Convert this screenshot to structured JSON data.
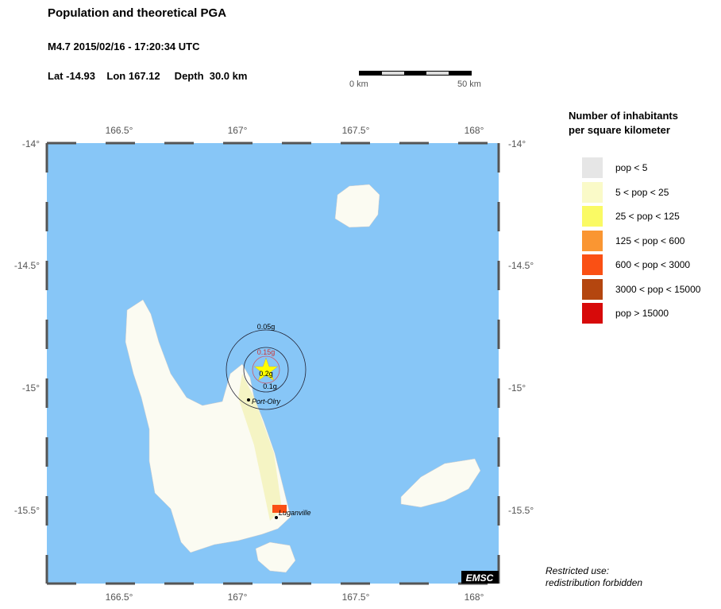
{
  "header": {
    "title": "Population and theoretical PGA",
    "event": "M4.7  2015/02/16 - 17:20:34 UTC",
    "location": "Lat -14.93    Lon 167.12     Depth  30.0 km"
  },
  "scale_bar": {
    "start": "0 km",
    "end": "50 km"
  },
  "map": {
    "lon_ticks": [
      "166.5°",
      "167°",
      "167.5°",
      "168°"
    ],
    "lat_ticks": [
      "-14°",
      "-14.5°",
      "-15°",
      "-15.5°"
    ],
    "ocean_color": "#87c6f7",
    "pga_contours": [
      "0.05g",
      "0.15g",
      "0.2g",
      "0.1g"
    ],
    "epicenter_icon": "star-icon",
    "cities": [
      "Port-Olry",
      "Luganville"
    ],
    "logo": "EMSC"
  },
  "legend": {
    "title_line1": "Number of inhabitants",
    "title_line2": "per square kilometer",
    "items": [
      {
        "label": "pop < 5",
        "color": "#e6e6e6"
      },
      {
        "label": "5 < pop < 25",
        "color": "#fafac8"
      },
      {
        "label": "25 < pop < 125",
        "color": "#fafa64"
      },
      {
        "label": "125 < pop < 600",
        "color": "#fa9632"
      },
      {
        "label": "600 < pop < 3000",
        "color": "#fa5014"
      },
      {
        "label": "3000 < pop < 15000",
        "color": "#b4460f"
      },
      {
        "label": "pop > 15000",
        "color": "#d70a0a"
      }
    ]
  },
  "note": {
    "line1": "Restricted use:",
    "line2": "redistribution forbidden"
  }
}
